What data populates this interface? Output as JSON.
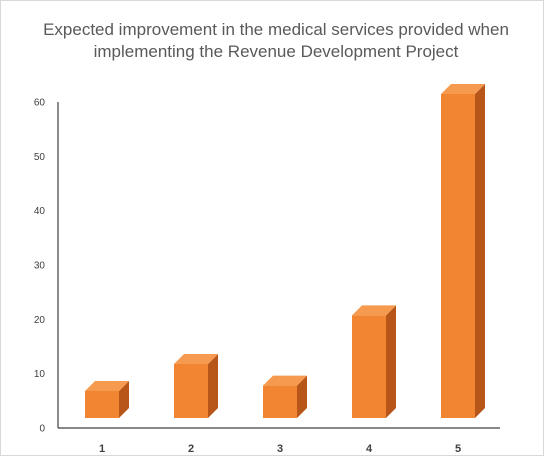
{
  "chart_data": {
    "type": "bar",
    "title_line1": "Expected improvement in the medical services provided when",
    "title_line2": "implementing the Revenue Development Project",
    "categories": [
      "1",
      "2",
      "3",
      "4",
      "5"
    ],
    "values": [
      5,
      10,
      6,
      19,
      60
    ],
    "ylim": [
      0,
      60
    ],
    "yticks": [
      "0",
      "10",
      "20",
      "30",
      "40",
      "50",
      "60"
    ],
    "xlabel": "",
    "ylabel": "",
    "grid": false,
    "legend": "none",
    "bar_style": "3d",
    "colors": {
      "front": "#f28532",
      "top": "#f69a50",
      "side": "#b8561a",
      "axis": "#404040"
    }
  }
}
